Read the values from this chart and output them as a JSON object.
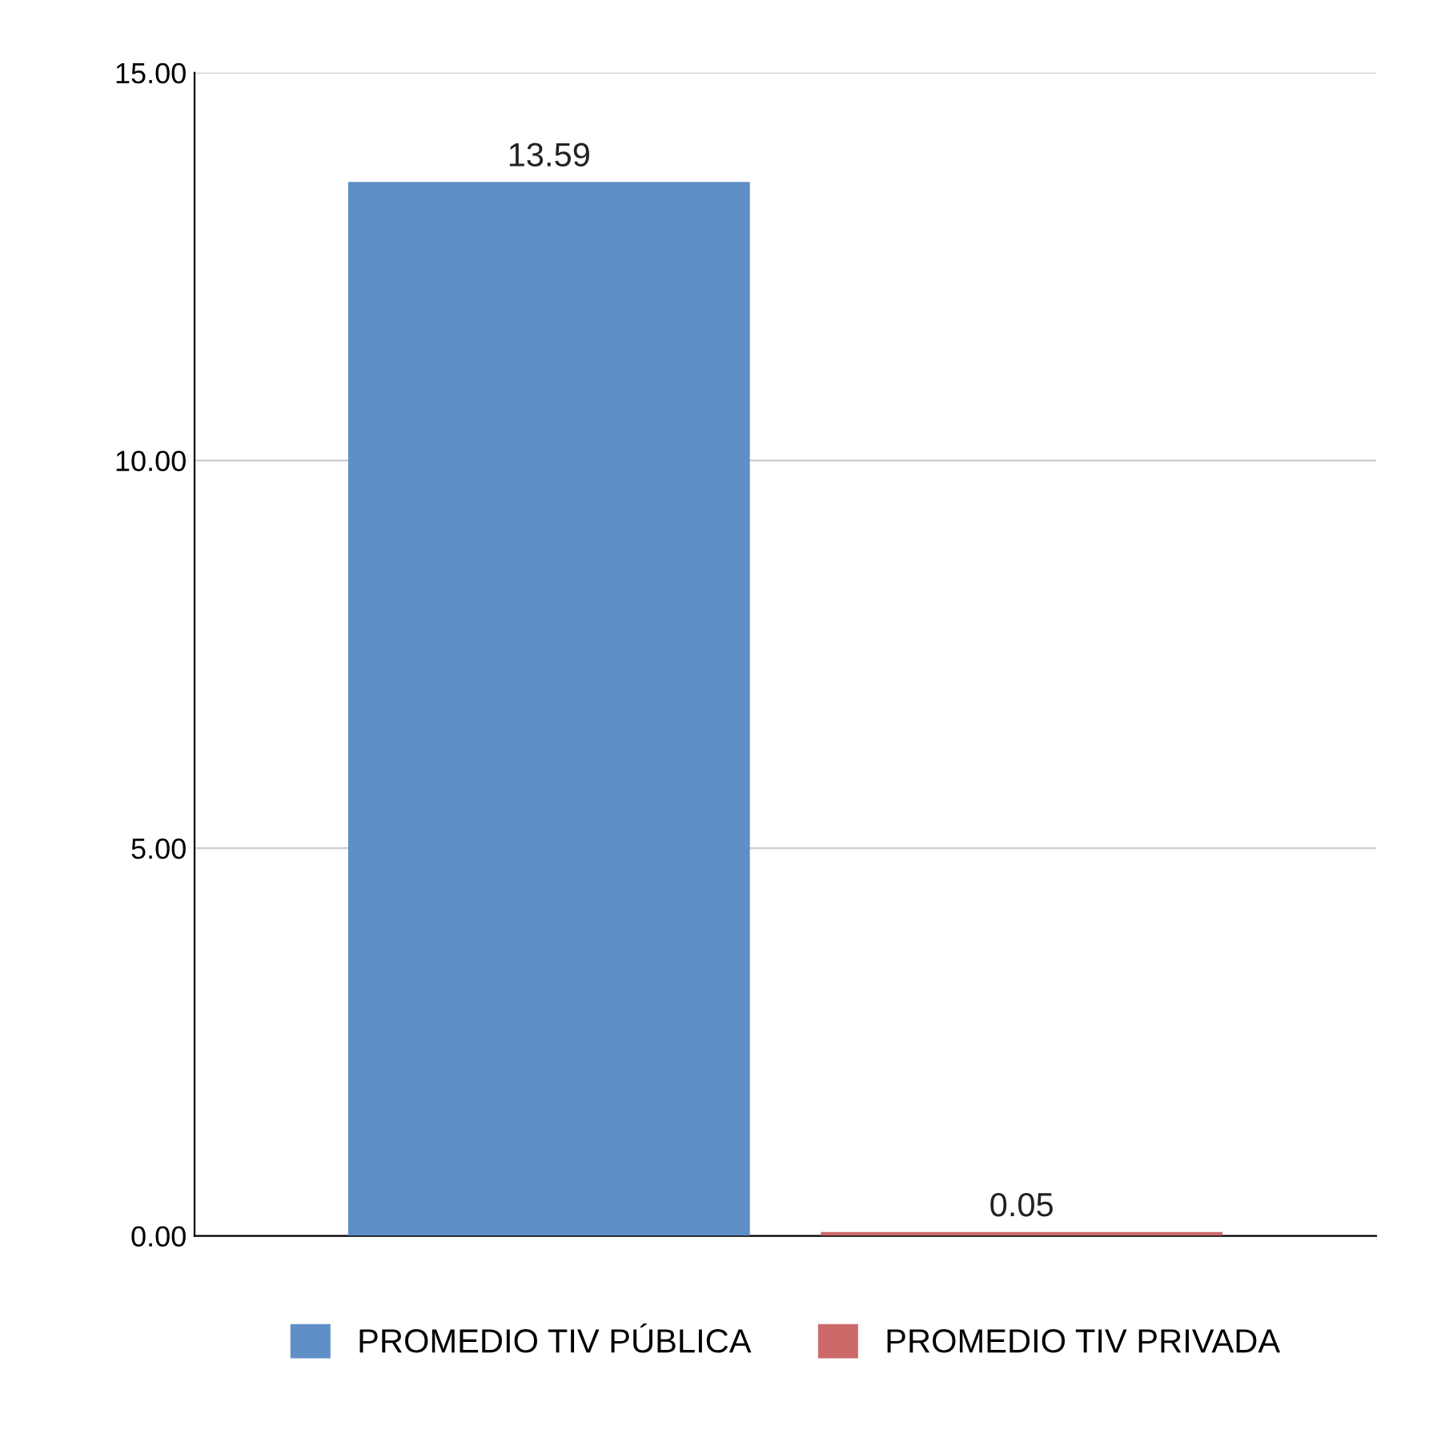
{
  "chart_data": {
    "type": "bar",
    "categories": [
      null
    ],
    "series": [
      {
        "name": "PROMEDIO TIV PÚBLICA",
        "color": "#5f8fc7",
        "values": [
          13.59
        ]
      },
      {
        "name": "PROMEDIO TIV PRIVADA",
        "color": "#cc6a6a",
        "values": [
          0.05
        ]
      }
    ],
    "ylim": [
      0,
      15
    ],
    "yticks": [
      {
        "value": 0,
        "label": "0.00"
      },
      {
        "value": 5,
        "label": "5.00"
      },
      {
        "value": 10,
        "label": "10.00"
      },
      {
        "value": 15,
        "label": "15.00"
      }
    ],
    "grid": "y",
    "legend": "bottom",
    "data_labels": true
  }
}
